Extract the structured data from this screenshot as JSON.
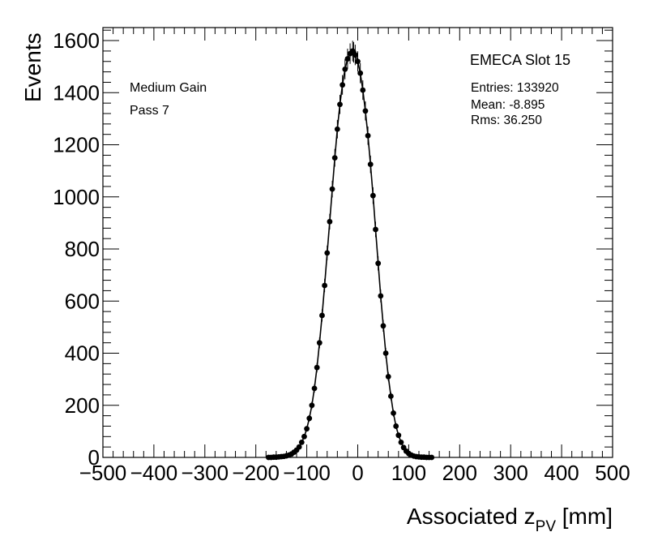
{
  "chart_data": {
    "type": "scatter",
    "title": "EMECA Slot 15",
    "xlabel_main": "Associated z",
    "xlabel_sub": "PV",
    "xlabel_unit": " [mm]",
    "ylabel": "Events",
    "xlim": [
      -500,
      500
    ],
    "ylim": [
      0,
      1650
    ],
    "x_ticks": [
      -500,
      -400,
      -300,
      -200,
      -100,
      0,
      100,
      200,
      300,
      400,
      500
    ],
    "x_tick_labels": [
      "−500",
      "−400",
      "−300",
      "−200",
      "−100",
      "0",
      "100",
      "200",
      "300",
      "400",
      "500"
    ],
    "y_ticks": [
      0,
      200,
      400,
      600,
      800,
      1000,
      1200,
      1400,
      1600
    ],
    "y_tick_labels": [
      "0",
      "200",
      "400",
      "600",
      "800",
      "1000",
      "1200",
      "1400",
      "1600"
    ],
    "annotations": [
      "Medium Gain",
      "Pass 7"
    ],
    "stats": {
      "entries": "Entries: 133920",
      "mean": "Mean: -8.895",
      "rms": "Rms: 36.250"
    },
    "series": [
      {
        "name": "data",
        "marker": "circle",
        "color": "#000000",
        "x": [
          -175,
          -170,
          -165,
          -160,
          -155,
          -150,
          -145,
          -140,
          -135,
          -130,
          -125,
          -120,
          -115,
          -110,
          -105,
          -100,
          -95,
          -90,
          -85,
          -80,
          -75,
          -70,
          -65,
          -60,
          -55,
          -50,
          -45,
          -40,
          -35,
          -30,
          -25,
          -20,
          -15,
          -10,
          -8,
          -5,
          0,
          5,
          10,
          15,
          20,
          25,
          30,
          35,
          40,
          45,
          50,
          55,
          60,
          65,
          70,
          75,
          80,
          85,
          90,
          95,
          100,
          105,
          110,
          115,
          120,
          125,
          130,
          135,
          140,
          145
        ],
        "y": [
          0,
          0,
          1,
          1,
          2,
          3,
          4,
          6,
          9,
          13,
          20,
          28,
          40,
          58,
          80,
          110,
          150,
          200,
          265,
          345,
          440,
          545,
          660,
          785,
          905,
          1030,
          1150,
          1260,
          1355,
          1430,
          1490,
          1530,
          1550,
          1560,
          1555,
          1545,
          1520,
          1475,
          1410,
          1330,
          1235,
          1125,
          1005,
          875,
          745,
          620,
          505,
          400,
          310,
          235,
          170,
          120,
          85,
          58,
          38,
          24,
          15,
          9,
          5,
          3,
          2,
          1,
          1,
          0,
          0,
          0
        ]
      }
    ]
  }
}
